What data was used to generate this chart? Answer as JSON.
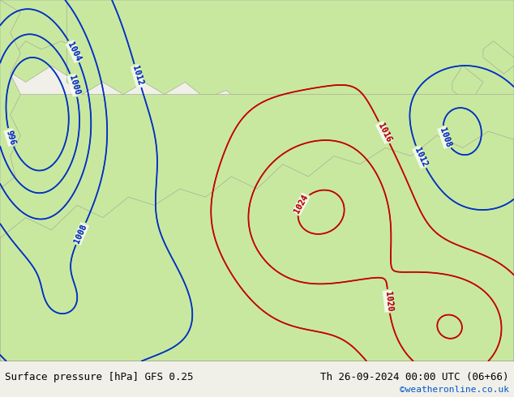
{
  "title_left": "Surface pressure [hPa] GFS 0.25",
  "title_right": "Th 26-09-2024 00:00 UTC (06+66)",
  "copyright": "©weatheronline.co.uk",
  "bg_color": "#f0f0e8",
  "land_color": "#c8e8a0",
  "sea_color": "#dcdce8",
  "land_border_color": "#a0a090",
  "footer_fontsize": 9,
  "copyright_color": "#0055cc",
  "footer_bg": "#e8e8e0"
}
